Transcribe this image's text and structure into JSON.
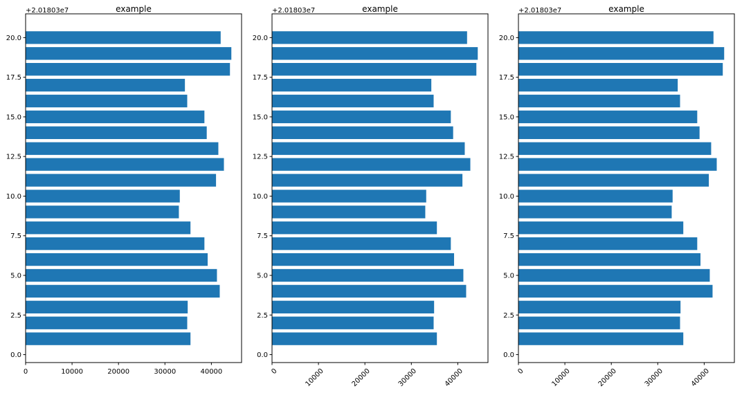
{
  "chart_data": [
    {
      "type": "bar",
      "orientation": "horizontal",
      "title": "example",
      "y_offset_label": "+2.01803e7",
      "x": [
        1,
        2,
        3,
        4,
        5,
        6,
        7,
        8,
        9,
        10,
        11,
        12,
        13,
        14,
        15,
        16,
        17,
        18,
        19,
        20
      ],
      "values": [
        35500,
        34800,
        34900,
        41800,
        41200,
        39200,
        38500,
        35500,
        33000,
        33200,
        41000,
        42700,
        41500,
        39000,
        38500,
        34800,
        34300,
        44000,
        44300,
        42000
      ],
      "xlim": [
        0,
        46500
      ],
      "ylim": [
        -0.5,
        21.5
      ],
      "x_ticks": [
        "0",
        "10000",
        "20000",
        "30000",
        "40000"
      ],
      "x_tick_values": [
        0,
        10000,
        20000,
        30000,
        40000
      ],
      "x_tick_rotation": 0,
      "y_ticks": [
        "0.0",
        "2.5",
        "5.0",
        "7.5",
        "10.0",
        "12.5",
        "15.0",
        "17.5",
        "20.0"
      ],
      "y_tick_values": [
        0,
        2.5,
        5,
        7.5,
        10,
        12.5,
        15,
        17.5,
        20
      ],
      "bar_color": "#1f77b4"
    },
    {
      "type": "bar",
      "orientation": "horizontal",
      "title": "example",
      "y_offset_label": "+2.01803e7",
      "x": [
        1,
        2,
        3,
        4,
        5,
        6,
        7,
        8,
        9,
        10,
        11,
        12,
        13,
        14,
        15,
        16,
        17,
        18,
        19,
        20
      ],
      "values": [
        35500,
        34800,
        34900,
        41800,
        41200,
        39200,
        38500,
        35500,
        33000,
        33200,
        41000,
        42700,
        41500,
        39000,
        38500,
        34800,
        34300,
        44000,
        44300,
        42000
      ],
      "xlim": [
        0,
        46500
      ],
      "ylim": [
        -0.5,
        21.5
      ],
      "x_ticks": [
        "0",
        "10000",
        "20000",
        "30000",
        "40000"
      ],
      "x_tick_values": [
        0,
        10000,
        20000,
        30000,
        40000
      ],
      "x_tick_rotation": 45,
      "y_ticks": [
        "0.0",
        "2.5",
        "5.0",
        "7.5",
        "10.0",
        "12.5",
        "15.0",
        "17.5",
        "20.0"
      ],
      "y_tick_values": [
        0,
        2.5,
        5,
        7.5,
        10,
        12.5,
        15,
        17.5,
        20
      ],
      "bar_color": "#1f77b4"
    },
    {
      "type": "bar",
      "orientation": "horizontal",
      "title": "example",
      "y_offset_label": "+2.01803e7",
      "x": [
        1,
        2,
        3,
        4,
        5,
        6,
        7,
        8,
        9,
        10,
        11,
        12,
        13,
        14,
        15,
        16,
        17,
        18,
        19,
        20
      ],
      "values": [
        35500,
        34800,
        34900,
        41800,
        41200,
        39200,
        38500,
        35500,
        33000,
        33200,
        41000,
        42700,
        41500,
        39000,
        38500,
        34800,
        34300,
        44000,
        44300,
        42000
      ],
      "xlim": [
        0,
        46500
      ],
      "ylim": [
        -0.5,
        21.5
      ],
      "x_ticks": [
        "0",
        "10000",
        "20000",
        "30000",
        "40000"
      ],
      "x_tick_values": [
        0,
        10000,
        20000,
        30000,
        40000
      ],
      "x_tick_rotation": 45,
      "y_ticks": [
        "0.0",
        "2.5",
        "5.0",
        "7.5",
        "10.0",
        "12.5",
        "15.0",
        "17.5",
        "20.0"
      ],
      "y_tick_values": [
        0,
        2.5,
        5,
        7.5,
        10,
        12.5,
        15,
        17.5,
        20
      ],
      "bar_color": "#1f77b4"
    }
  ]
}
